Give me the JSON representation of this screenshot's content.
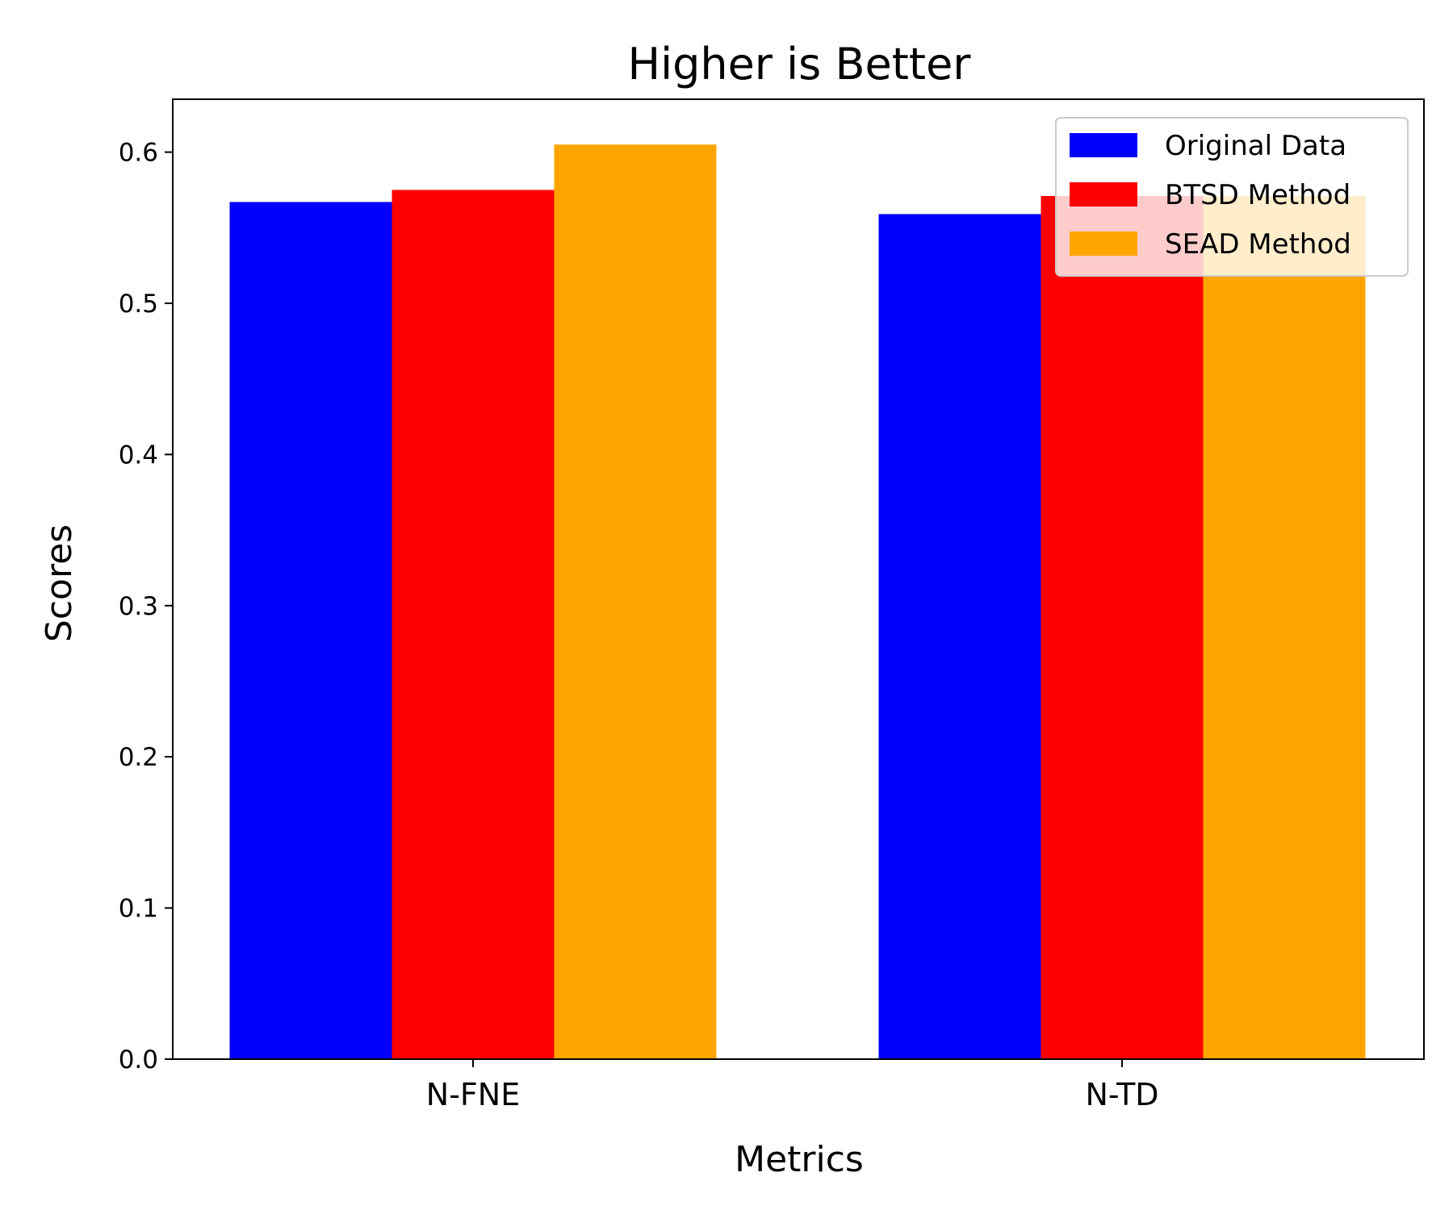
{
  "chart_data": {
    "type": "bar",
    "title": "Higher is Better",
    "xlabel": "Metrics",
    "ylabel": "Scores",
    "categories": [
      "N-FNE",
      "N-TD"
    ],
    "series": [
      {
        "name": "Original Data",
        "color": "#0000ff",
        "values": [
          0.567,
          0.559
        ]
      },
      {
        "name": "BTSD Method",
        "color": "#ff0000",
        "values": [
          0.575,
          0.571
        ]
      },
      {
        "name": "SEAD Method",
        "color": "#ffa500",
        "values": [
          0.605,
          0.571
        ]
      }
    ],
    "ylim": [
      0,
      0.635
    ],
    "yticks": [
      "0.0",
      "0.1",
      "0.2",
      "0.3",
      "0.4",
      "0.5",
      "0.6"
    ],
    "grid": false,
    "legend_position": "top-right"
  }
}
